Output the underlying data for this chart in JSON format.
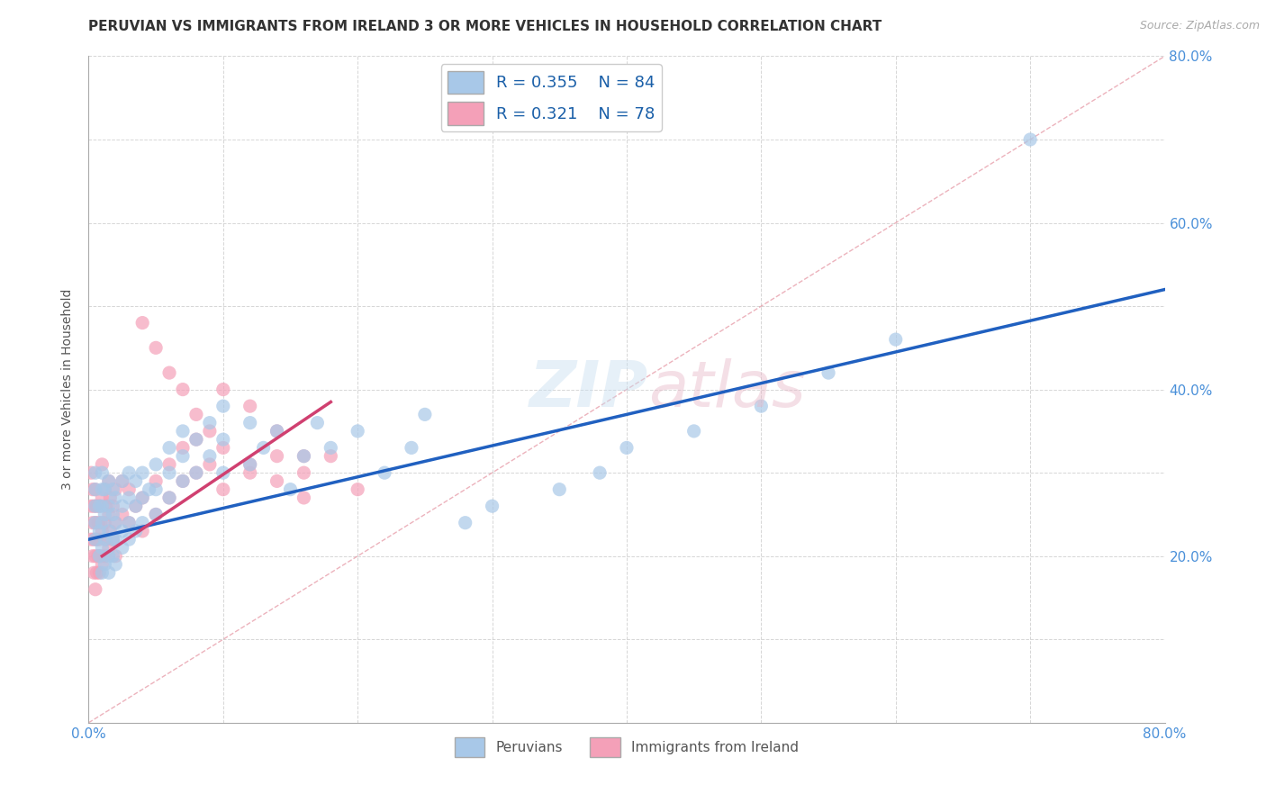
{
  "title": "PERUVIAN VS IMMIGRANTS FROM IRELAND 3 OR MORE VEHICLES IN HOUSEHOLD CORRELATION CHART",
  "source": "Source: ZipAtlas.com",
  "ylabel": "3 or more Vehicles in Household",
  "xlim": [
    0.0,
    0.8
  ],
  "ylim": [
    0.0,
    0.8
  ],
  "xticks": [
    0.0,
    0.1,
    0.2,
    0.3,
    0.4,
    0.5,
    0.6,
    0.7,
    0.8
  ],
  "yticks": [
    0.0,
    0.1,
    0.2,
    0.3,
    0.4,
    0.5,
    0.6,
    0.7,
    0.8
  ],
  "peruvian_color": "#a8c8e8",
  "ireland_color": "#f4a0b8",
  "peruvian_line_color": "#2060c0",
  "ireland_line_color": "#d04070",
  "ref_line_color": "#e08090",
  "legend_R1": "R = 0.355",
  "legend_N1": "N = 84",
  "legend_R2": "R = 0.321",
  "legend_N2": "N = 78",
  "title_fontsize": 11,
  "axis_label_fontsize": 10,
  "tick_fontsize": 11,
  "legend_fontsize": 13,
  "background_color": "#ffffff",
  "grid_color": "#cccccc",
  "peru_line_x0": 0.0,
  "peru_line_y0": 0.22,
  "peru_line_x1": 0.8,
  "peru_line_y1": 0.52,
  "ire_line_x0": 0.01,
  "ire_line_y0": 0.2,
  "ire_line_x1": 0.18,
  "ire_line_y1": 0.385,
  "peruvian_scatter_x": [
    0.005,
    0.005,
    0.005,
    0.005,
    0.005,
    0.008,
    0.008,
    0.008,
    0.01,
    0.01,
    0.01,
    0.01,
    0.01,
    0.01,
    0.012,
    0.012,
    0.012,
    0.012,
    0.015,
    0.015,
    0.015,
    0.015,
    0.015,
    0.018,
    0.018,
    0.018,
    0.018,
    0.02,
    0.02,
    0.02,
    0.02,
    0.025,
    0.025,
    0.025,
    0.025,
    0.03,
    0.03,
    0.03,
    0.03,
    0.035,
    0.035,
    0.035,
    0.04,
    0.04,
    0.04,
    0.045,
    0.05,
    0.05,
    0.05,
    0.06,
    0.06,
    0.06,
    0.07,
    0.07,
    0.07,
    0.08,
    0.08,
    0.09,
    0.09,
    0.1,
    0.1,
    0.1,
    0.12,
    0.12,
    0.13,
    0.14,
    0.15,
    0.16,
    0.17,
    0.18,
    0.2,
    0.22,
    0.24,
    0.25,
    0.28,
    0.3,
    0.35,
    0.38,
    0.4,
    0.45,
    0.5,
    0.55,
    0.6,
    0.7
  ],
  "peruvian_scatter_y": [
    0.22,
    0.24,
    0.26,
    0.28,
    0.3,
    0.2,
    0.23,
    0.26,
    0.18,
    0.21,
    0.24,
    0.26,
    0.28,
    0.3,
    0.19,
    0.22,
    0.25,
    0.28,
    0.18,
    0.2,
    0.23,
    0.26,
    0.29,
    0.2,
    0.22,
    0.25,
    0.28,
    0.19,
    0.22,
    0.24,
    0.27,
    0.21,
    0.23,
    0.26,
    0.29,
    0.22,
    0.24,
    0.27,
    0.3,
    0.23,
    0.26,
    0.29,
    0.24,
    0.27,
    0.3,
    0.28,
    0.25,
    0.28,
    0.31,
    0.27,
    0.3,
    0.33,
    0.29,
    0.32,
    0.35,
    0.3,
    0.34,
    0.32,
    0.36,
    0.3,
    0.34,
    0.38,
    0.31,
    0.36,
    0.33,
    0.35,
    0.28,
    0.32,
    0.36,
    0.33,
    0.35,
    0.3,
    0.33,
    0.37,
    0.24,
    0.26,
    0.28,
    0.3,
    0.33,
    0.35,
    0.38,
    0.42,
    0.46,
    0.7
  ],
  "ireland_scatter_x": [
    0.002,
    0.002,
    0.002,
    0.003,
    0.003,
    0.003,
    0.004,
    0.004,
    0.004,
    0.005,
    0.005,
    0.005,
    0.005,
    0.006,
    0.006,
    0.006,
    0.007,
    0.007,
    0.008,
    0.008,
    0.008,
    0.009,
    0.009,
    0.01,
    0.01,
    0.01,
    0.01,
    0.012,
    0.012,
    0.012,
    0.013,
    0.013,
    0.015,
    0.015,
    0.015,
    0.016,
    0.016,
    0.018,
    0.018,
    0.02,
    0.02,
    0.02,
    0.025,
    0.025,
    0.03,
    0.03,
    0.035,
    0.04,
    0.04,
    0.05,
    0.05,
    0.06,
    0.06,
    0.07,
    0.07,
    0.08,
    0.08,
    0.09,
    0.1,
    0.12,
    0.14,
    0.16,
    0.18,
    0.2,
    0.1,
    0.12,
    0.14,
    0.16,
    0.04,
    0.05,
    0.06,
    0.07,
    0.08,
    0.09,
    0.1,
    0.12,
    0.14,
    0.16
  ],
  "ireland_scatter_y": [
    0.22,
    0.26,
    0.3,
    0.2,
    0.24,
    0.28,
    0.18,
    0.22,
    0.26,
    0.16,
    0.2,
    0.24,
    0.28,
    0.18,
    0.22,
    0.26,
    0.2,
    0.24,
    0.18,
    0.22,
    0.26,
    0.2,
    0.24,
    0.19,
    0.23,
    0.27,
    0.31,
    0.2,
    0.24,
    0.28,
    0.22,
    0.26,
    0.21,
    0.25,
    0.29,
    0.23,
    0.27,
    0.22,
    0.26,
    0.2,
    0.24,
    0.28,
    0.25,
    0.29,
    0.24,
    0.28,
    0.26,
    0.23,
    0.27,
    0.25,
    0.29,
    0.27,
    0.31,
    0.29,
    0.33,
    0.3,
    0.34,
    0.31,
    0.28,
    0.3,
    0.32,
    0.3,
    0.32,
    0.28,
    0.4,
    0.38,
    0.35,
    0.32,
    0.48,
    0.45,
    0.42,
    0.4,
    0.37,
    0.35,
    0.33,
    0.31,
    0.29,
    0.27
  ]
}
